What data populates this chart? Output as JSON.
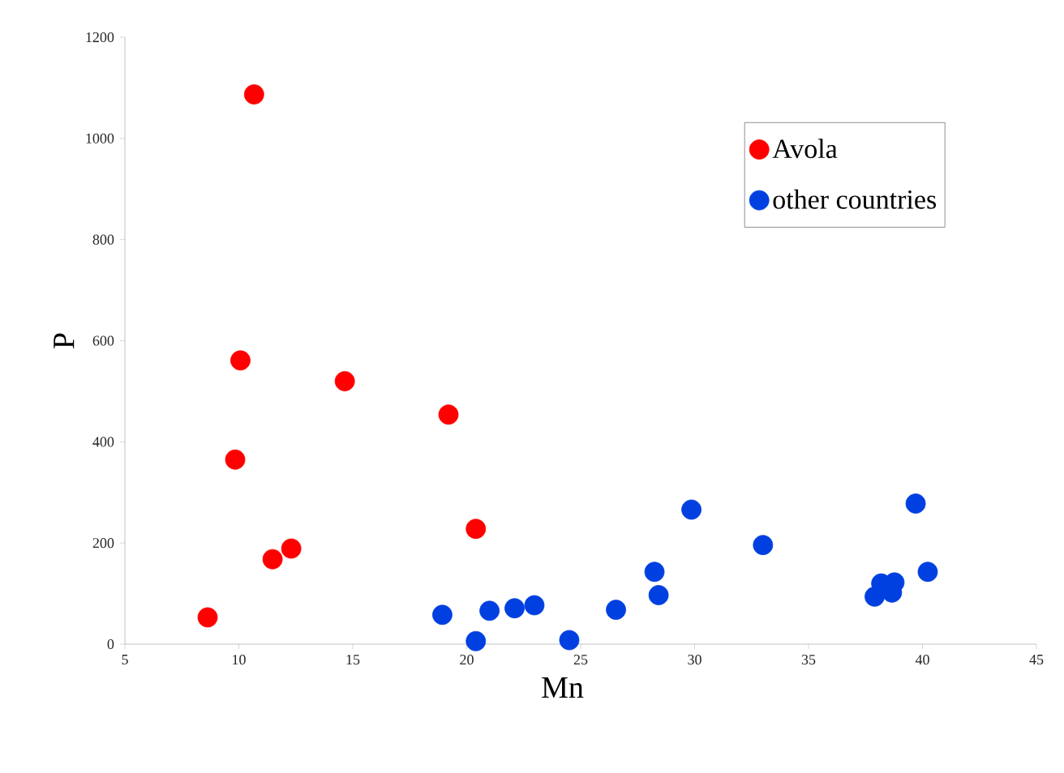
{
  "chart_data": {
    "type": "scatter",
    "xlabel": "Mn",
    "ylabel": "P",
    "xlim": [
      5,
      45
    ],
    "ylim": [
      0,
      1200
    ],
    "xticks": [
      5,
      10,
      15,
      20,
      25,
      30,
      35,
      40,
      45
    ],
    "yticks": [
      0,
      200,
      400,
      600,
      800,
      1000,
      1200
    ],
    "grid": false,
    "legend": "top right",
    "marker": "circle",
    "series": [
      {
        "name": "Avola",
        "color": "#ff0000",
        "x": [
          8.63,
          10.67,
          10.07,
          9.84,
          14.65,
          19.2,
          20.4,
          11.48,
          12.3
        ],
        "values": [
          53,
          1087,
          561,
          365,
          520,
          454,
          228,
          168,
          189
        ]
      },
      {
        "name": "other countries",
        "color": "#0040e0",
        "x": [
          18.93,
          20.4,
          21.0,
          22.1,
          22.97,
          24.5,
          26.55,
          28.24,
          28.42,
          29.86,
          33.0,
          37.9,
          38.19,
          38.66,
          38.77,
          39.7,
          40.23
        ],
        "values": [
          58,
          6,
          66,
          71,
          77,
          8,
          68,
          143,
          97,
          266,
          196,
          94,
          120,
          102,
          122,
          278,
          143
        ]
      }
    ]
  }
}
